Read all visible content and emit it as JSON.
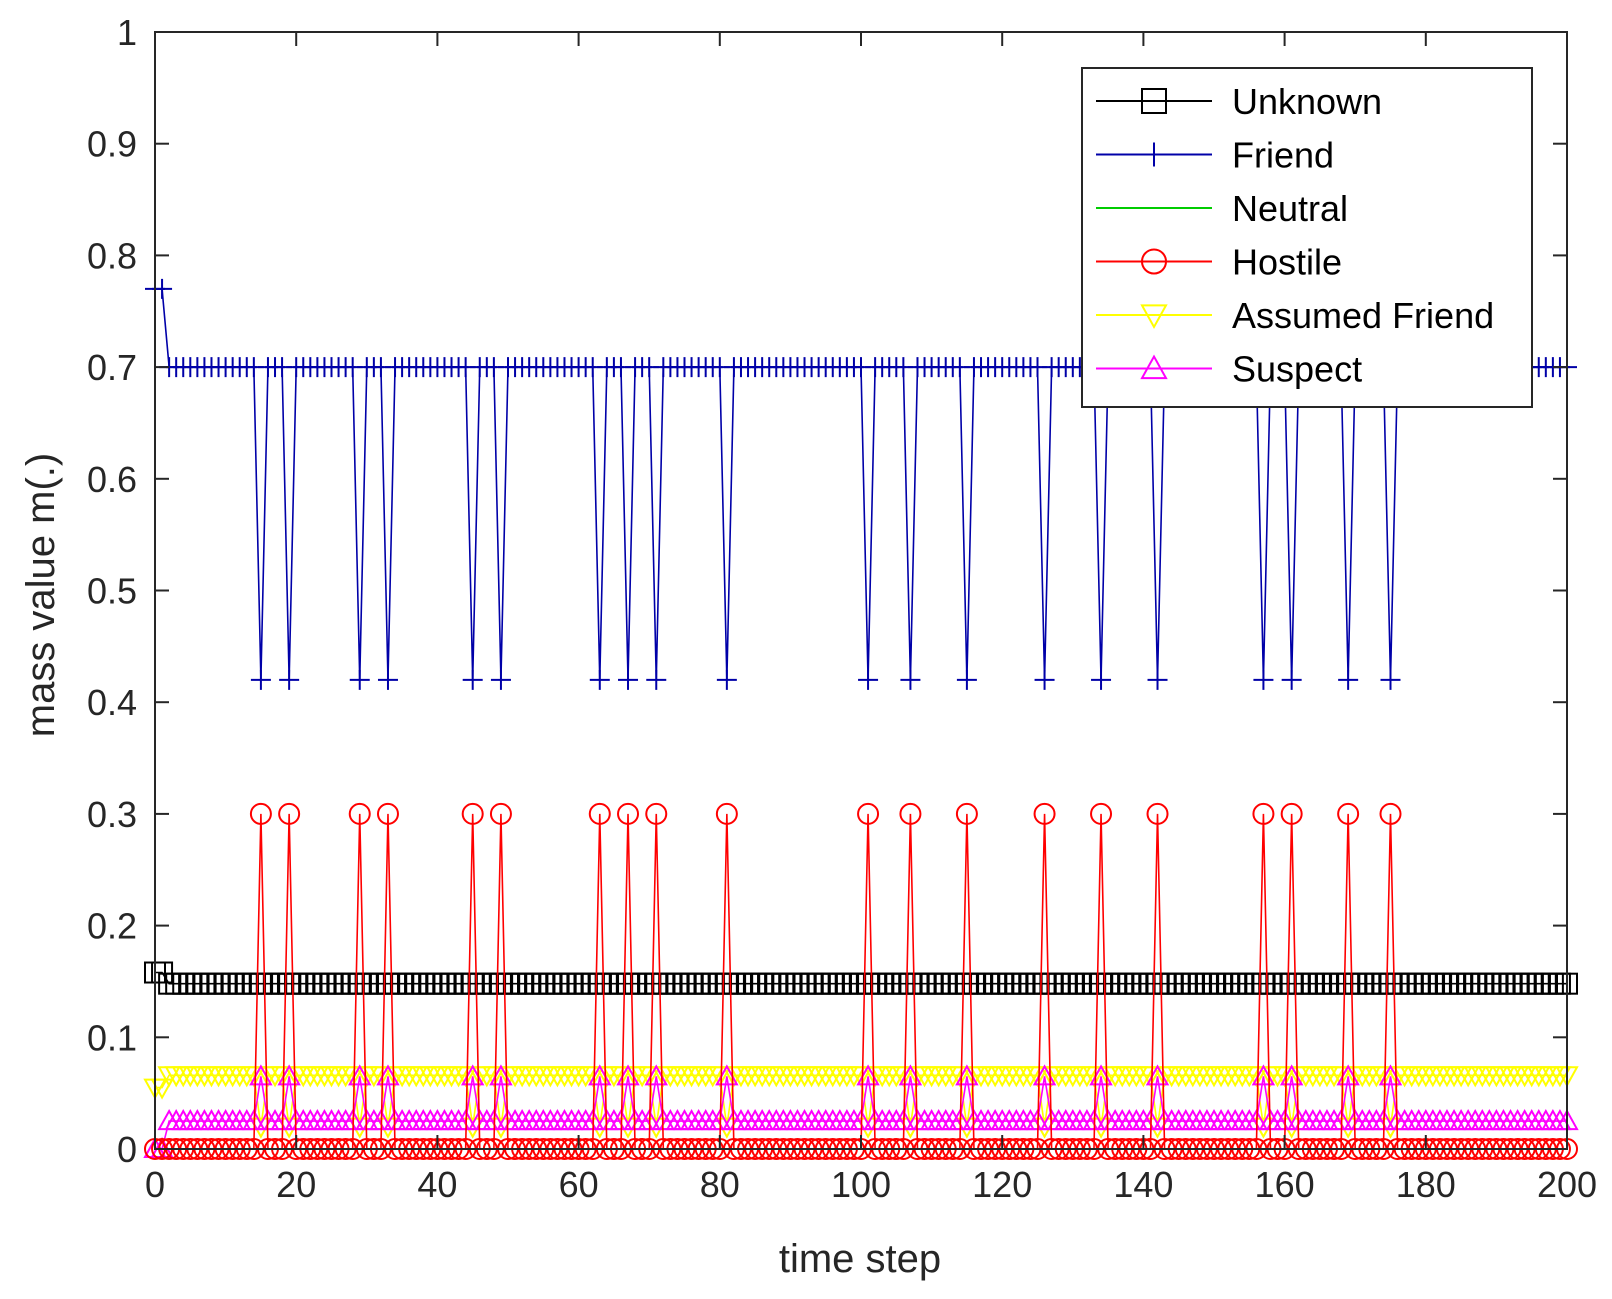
{
  "chart_data": {
    "type": "line",
    "title": "",
    "xlabel": "time step",
    "ylabel": "mass value m(.)",
    "xlim": [
      0,
      200
    ],
    "ylim": [
      0,
      1
    ],
    "xticks": [
      "0",
      "20",
      "40",
      "60",
      "80",
      "100",
      "120",
      "140",
      "160",
      "180",
      "200"
    ],
    "yticks": [
      "0",
      "0.1",
      "0.2",
      "0.3",
      "0.4",
      "0.5",
      "0.6",
      "0.7",
      "0.8",
      "0.9",
      "1"
    ],
    "grid": false,
    "legend_position": "top-right",
    "dip_steps": [
      15,
      19,
      29,
      33,
      45,
      49,
      63,
      67,
      71,
      81,
      101,
      107,
      115,
      126,
      134,
      142,
      157,
      161,
      169,
      175
    ],
    "series": [
      {
        "name": "Unknown",
        "color": "#000000",
        "marker": "square",
        "start_values": [
          0.158,
          0.158
        ],
        "normal": 0.148,
        "at_dip": 0.148
      },
      {
        "name": "Friend",
        "color": "#0000a8",
        "marker": "plus",
        "start_values": [
          0.77,
          0.77
        ],
        "normal": 0.7,
        "at_dip": 0.42
      },
      {
        "name": "Neutral",
        "color": "#00cc00",
        "marker": "none",
        "start_values": [
          0.0,
          0.0
        ],
        "normal": 0.0,
        "at_dip": 0.0
      },
      {
        "name": "Hostile",
        "color": "#ff0000",
        "marker": "circle",
        "start_values": [
          0.0,
          0.0
        ],
        "normal": 0.0,
        "at_dip": 0.3
      },
      {
        "name": "Assumed Friend",
        "color": "#ffff00",
        "marker": "triangle-down",
        "start_values": [
          0.055,
          0.055
        ],
        "normal": 0.066,
        "at_dip": 0.02
      },
      {
        "name": "Suspect",
        "color": "#ff00ff",
        "marker": "triangle-up",
        "start_values": [
          0.0,
          0.0
        ],
        "normal": 0.025,
        "at_dip": 0.065
      }
    ]
  }
}
